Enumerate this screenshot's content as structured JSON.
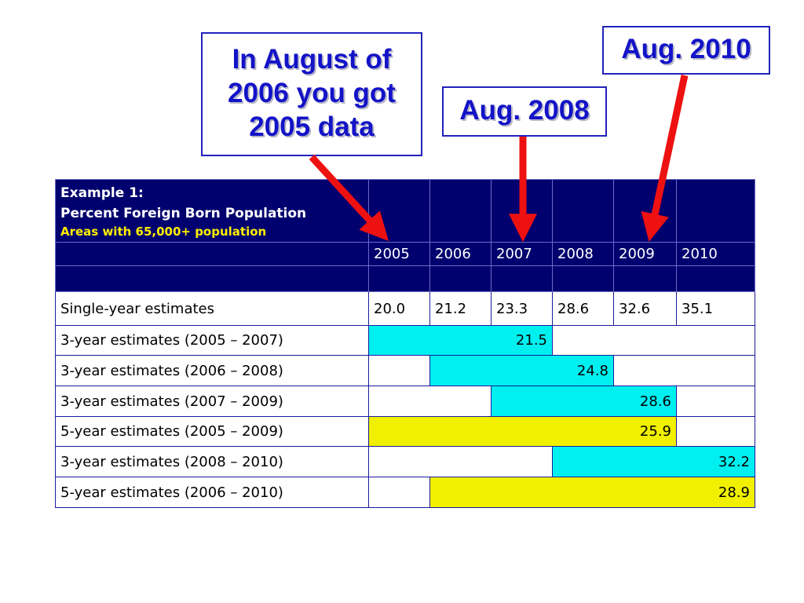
{
  "callouts": {
    "c2006": {
      "lines": [
        "In August of",
        "2006 you got",
        "2005 data"
      ]
    },
    "c2008": {
      "text": "Aug. 2008"
    },
    "c2010": {
      "text": "Aug. 2010"
    }
  },
  "table": {
    "title": "Example 1:",
    "subtitle": "Percent Foreign Born Population",
    "note": "Areas with 65,000+  population",
    "years": [
      "2005",
      "2006",
      "2007",
      "2008",
      "2009",
      "2010"
    ],
    "single_year": {
      "label": "Single-year estimates",
      "values": [
        "20.0",
        "21.2",
        "23.3",
        "28.6",
        "32.6",
        "35.1"
      ]
    },
    "rows": [
      {
        "label": "3-year estimates (2005 – 2007)",
        "value": "21.5"
      },
      {
        "label": "3-year estimates (2006 – 2008)",
        "value": "24.8"
      },
      {
        "label": "3-year estimates (2007 – 2009)",
        "value": "28.6"
      },
      {
        "label": "5-year estimates (2005 – 2009)",
        "value": "25.9"
      },
      {
        "label": "3-year estimates (2008 – 2010)",
        "value": "32.2"
      },
      {
        "label": "5-year estimates (2006 – 2010)",
        "value": "28.9"
      }
    ]
  },
  "colors": {
    "header_bg": "#00006e",
    "three_year_fill": "#00f0f0",
    "five_year_fill": "#f0f000",
    "arrow": "#ee1111",
    "callout_text": "#1313c8"
  }
}
